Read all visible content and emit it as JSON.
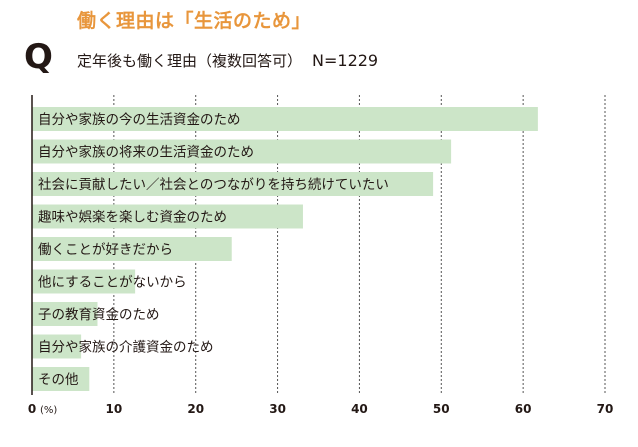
{
  "title": "働く理由は「生活のため」",
  "q_mark": "Q",
  "subtitle": "定年後も働く理由（複数回答可）",
  "sample_size": "N=1229",
  "chart_data": {
    "type": "bar",
    "orientation": "horizontal",
    "categories": [
      "自分や家族の今の生活資金のため",
      "自分や家族の将来の生活資金のため",
      "社会に貢献したい／社会とのつながりを持ち続けていたい",
      "趣味や娯楽を楽しむ資金のため",
      "働くことが好きだから",
      "他にすることがないから",
      "子の教育資金のため",
      "自分や家族の介護資金のため",
      "その他"
    ],
    "values": [
      61.8,
      51.2,
      49.0,
      33.1,
      24.4,
      12.6,
      8.0,
      6.0,
      7.0
    ],
    "x_ticks": [
      "0",
      "10",
      "20",
      "30",
      "40",
      "50",
      "60",
      "70"
    ],
    "x_unit": "(%)",
    "xlim": [
      0,
      70
    ],
    "bar_color": "#cce5c8",
    "grid": "dotted vertical"
  }
}
